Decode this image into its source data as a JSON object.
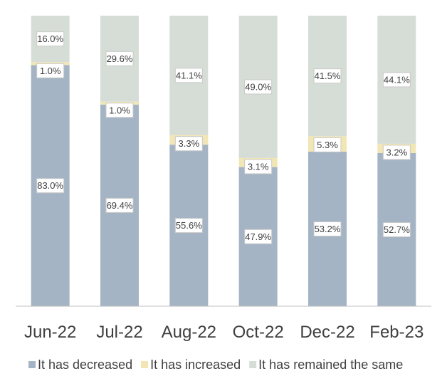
{
  "chart_data": {
    "type": "bar",
    "stacked": true,
    "percent": true,
    "categories": [
      "Jun-22",
      "Jul-22",
      "Aug-22",
      "Oct-22",
      "Dec-22",
      "Feb-23"
    ],
    "series": [
      {
        "name": "It has decreased",
        "values": [
          83.0,
          69.4,
          55.6,
          47.9,
          53.2,
          52.7
        ],
        "color": "#a5b4c4"
      },
      {
        "name": "It has increased",
        "values": [
          1.0,
          1.0,
          3.3,
          3.1,
          5.3,
          3.2
        ],
        "color": "#f2e6b4"
      },
      {
        "name": "It has remained the same",
        "values": [
          16.0,
          29.6,
          41.1,
          49.0,
          41.5,
          44.1
        ],
        "color": "#d6ddd6"
      }
    ],
    "data_labels": [
      [
        "83.0%",
        "69.4%",
        "55.6%",
        "47.9%",
        "53.2%",
        "52.7%"
      ],
      [
        "1.0%",
        "1.0%",
        "3.3%",
        "3.1%",
        "5.3%",
        "3.2%"
      ],
      [
        "16.0%",
        "29.6%",
        "41.1%",
        "49.0%",
        "41.5%",
        "44.1%"
      ]
    ],
    "ylim": [
      0,
      100
    ],
    "grid": false,
    "legend_position": "bottom"
  }
}
